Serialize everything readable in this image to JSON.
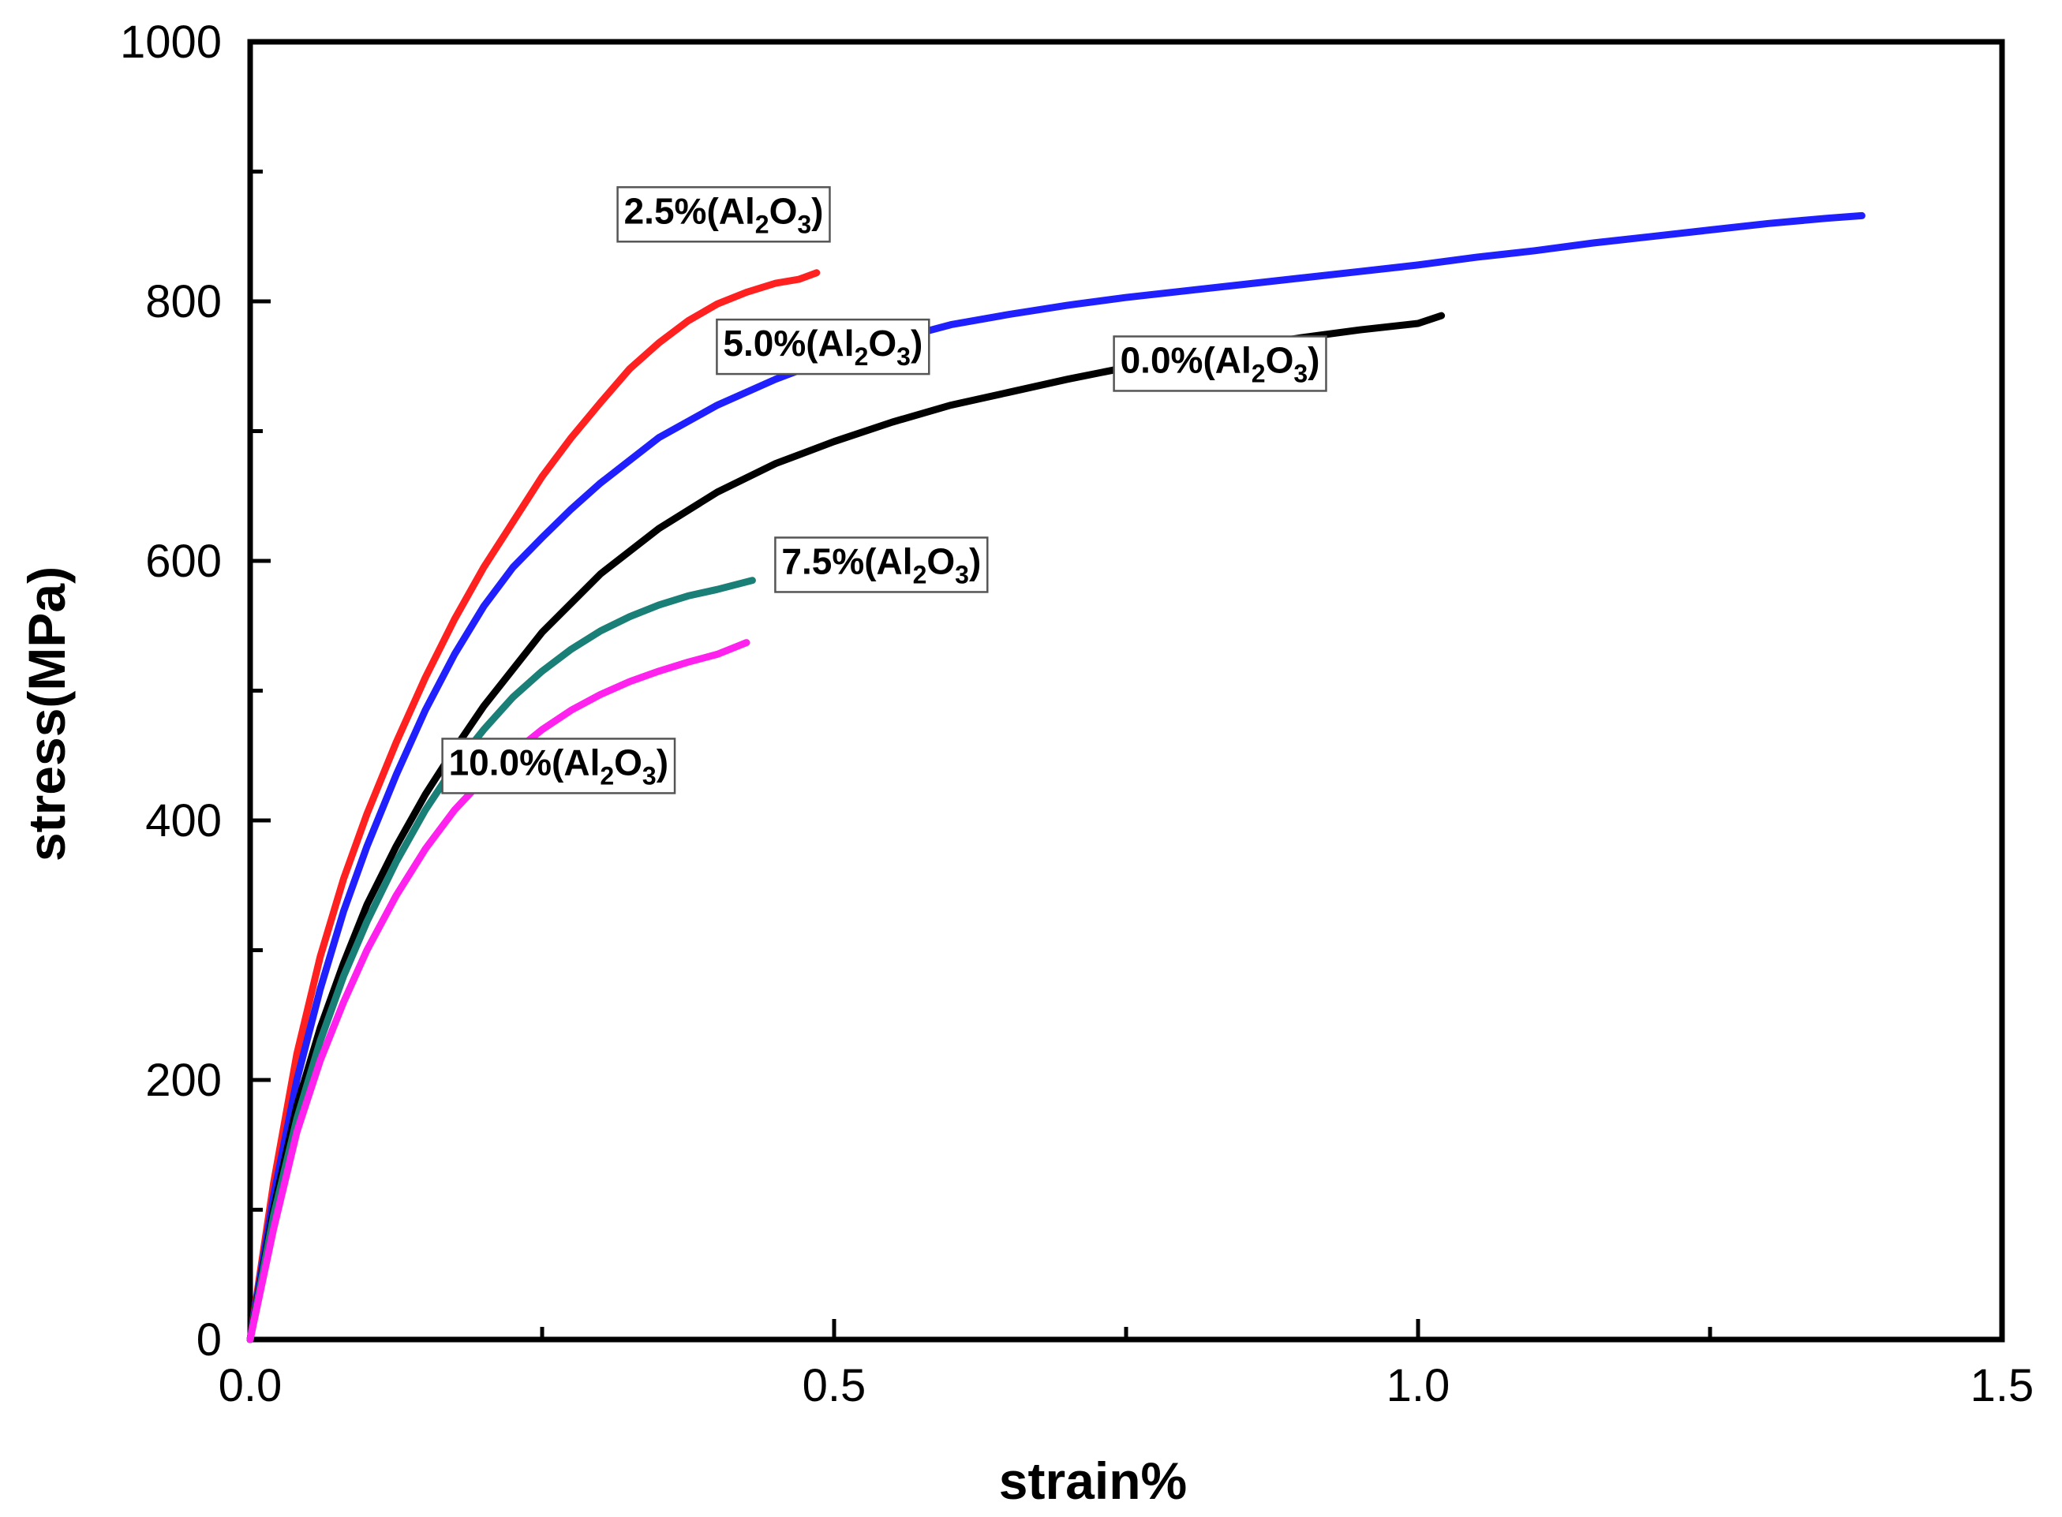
{
  "chart_data": {
    "type": "line",
    "title": "",
    "xlabel": "strain%",
    "ylabel": "stress(MPa)",
    "xlim": [
      0,
      1.5
    ],
    "ylim": [
      0,
      1000
    ],
    "x_ticks": [
      0.0,
      0.5,
      1.0,
      1.5
    ],
    "x_tick_labels": [
      "0.0",
      "0.5",
      "1.0",
      "1.5"
    ],
    "x_minor_ticks": [
      0.25,
      0.75,
      1.25
    ],
    "y_ticks": [
      0,
      200,
      400,
      600,
      800,
      1000
    ],
    "y_tick_labels": [
      "0",
      "200",
      "400",
      "600",
      "800",
      "1000"
    ],
    "y_minor_ticks": [
      100,
      300,
      500,
      700,
      900
    ],
    "grid": false,
    "series": [
      {
        "name": "2.5%(Al2O3)",
        "label_main": "2.5%(Al",
        "label_sub1": "2",
        "label_mid": "O",
        "label_sub2": "3",
        "label_end": ")",
        "label_anchor": [
          0.32,
          860
        ],
        "color": "#ff2020",
        "x": [
          0,
          0.02,
          0.04,
          0.06,
          0.08,
          0.1,
          0.125,
          0.15,
          0.175,
          0.2,
          0.225,
          0.25,
          0.275,
          0.3,
          0.325,
          0.35,
          0.375,
          0.4,
          0.425,
          0.45,
          0.47,
          0.485
        ],
        "y": [
          0,
          120,
          220,
          295,
          355,
          405,
          460,
          510,
          555,
          595,
          630,
          665,
          695,
          722,
          748,
          768,
          785,
          798,
          807,
          814,
          817,
          822
        ]
      },
      {
        "name": "5.0%(Al2O3)",
        "label_main": "5.0%(Al",
        "label_sub1": "2",
        "label_mid": "O",
        "label_sub2": "3",
        "label_end": ")",
        "label_anchor": [
          0.405,
          758
        ],
        "color": "#2020ff",
        "x": [
          0,
          0.02,
          0.04,
          0.06,
          0.08,
          0.1,
          0.125,
          0.15,
          0.175,
          0.2,
          0.225,
          0.25,
          0.275,
          0.3,
          0.35,
          0.4,
          0.45,
          0.5,
          0.55,
          0.6,
          0.65,
          0.7,
          0.75,
          0.8,
          0.85,
          0.9,
          0.95,
          1.0,
          1.05,
          1.1,
          1.15,
          1.2,
          1.25,
          1.3,
          1.35,
          1.38
        ],
        "y": [
          0,
          110,
          200,
          270,
          330,
          380,
          435,
          485,
          528,
          565,
          595,
          618,
          640,
          660,
          695,
          720,
          740,
          757,
          770,
          782,
          790,
          797,
          803,
          808,
          813,
          818,
          823,
          828,
          834,
          839,
          845,
          850,
          855,
          860,
          864,
          866
        ]
      },
      {
        "name": "0.0%(Al2O3)",
        "label_main": "0.0%(Al",
        "label_sub1": "2",
        "label_mid": "O",
        "label_sub2": "3",
        "label_end": ")",
        "label_anchor": [
          0.745,
          745
        ],
        "color": "#000000",
        "x": [
          0,
          0.02,
          0.04,
          0.06,
          0.08,
          0.1,
          0.125,
          0.15,
          0.175,
          0.2,
          0.25,
          0.3,
          0.35,
          0.4,
          0.45,
          0.5,
          0.55,
          0.6,
          0.65,
          0.7,
          0.75,
          0.8,
          0.85,
          0.9,
          0.95,
          1.0,
          1.02
        ],
        "y": [
          0,
          100,
          180,
          240,
          290,
          335,
          380,
          420,
          455,
          488,
          545,
          590,
          625,
          653,
          675,
          692,
          707,
          720,
          730,
          740,
          749,
          757,
          765,
          772,
          778,
          783,
          789
        ]
      },
      {
        "name": "7.5%(Al2O3)",
        "label_main": "7.5%(Al",
        "label_sub1": "2",
        "label_mid": "O",
        "label_sub2": "3",
        "label_end": ")",
        "label_anchor": [
          0.455,
          590
        ],
        "color": "#1a7f76",
        "x": [
          0,
          0.02,
          0.04,
          0.06,
          0.08,
          0.1,
          0.125,
          0.15,
          0.175,
          0.2,
          0.225,
          0.25,
          0.275,
          0.3,
          0.325,
          0.35,
          0.375,
          0.4,
          0.43
        ],
        "y": [
          0,
          95,
          170,
          230,
          280,
          322,
          368,
          408,
          442,
          470,
          495,
          515,
          532,
          546,
          557,
          566,
          573,
          578,
          585
        ]
      },
      {
        "name": "10.0%(Al2O3)",
        "label_main": "10.0%(Al",
        "label_sub1": "2",
        "label_mid": "O",
        "label_sub2": "3",
        "label_end": ")",
        "label_anchor": [
          0.17,
          435
        ],
        "color": "#ff22ee",
        "x": [
          0,
          0.02,
          0.04,
          0.06,
          0.08,
          0.1,
          0.125,
          0.15,
          0.175,
          0.2,
          0.225,
          0.25,
          0.275,
          0.3,
          0.325,
          0.35,
          0.375,
          0.4,
          0.425
        ],
        "y": [
          0,
          85,
          160,
          215,
          260,
          300,
          342,
          378,
          408,
          432,
          452,
          470,
          485,
          497,
          507,
          515,
          522,
          528,
          537
        ]
      }
    ]
  }
}
